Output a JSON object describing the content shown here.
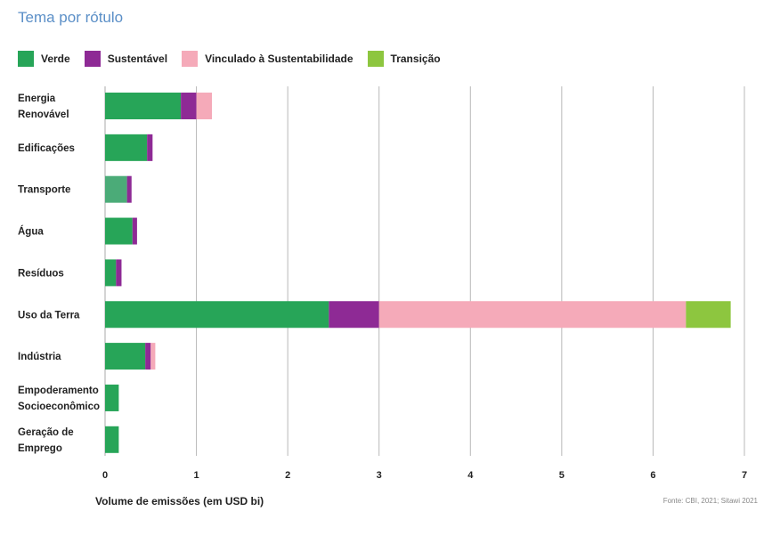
{
  "title": "Tema por rótulo",
  "source": "Fonte: CBI, 2021; Sitawi 2021",
  "colors": {
    "verde": "#27a558",
    "sustentavel": "#8e2a95",
    "vinculado": "#f5aab9",
    "transicao": "#8dc63f",
    "grid": "#b8b8b8"
  },
  "legend": [
    {
      "label": "Verde",
      "color": "#27a558"
    },
    {
      "label": "Sustentável",
      "color": "#8e2a95"
    },
    {
      "label": "Vinculado à Sustentabilidade",
      "color": "#f5aab9"
    },
    {
      "label": "Transição",
      "color": "#8dc63f"
    }
  ],
  "chart_data": {
    "type": "bar",
    "orientation": "horizontal",
    "stacked": true,
    "title": "Tema por rótulo",
    "xlabel": "Volume de emissões (em USD bi)",
    "ylabel": "",
    "xlim": [
      0,
      7
    ],
    "xticks": [
      "0",
      "1",
      "2",
      "3",
      "4",
      "5",
      "6",
      "7"
    ],
    "grid": true,
    "legend_position": "top",
    "categories": [
      [
        "Energia",
        "Renovável"
      ],
      [
        "Edificações"
      ],
      [
        "Transporte"
      ],
      [
        "Água"
      ],
      [
        "Resíduos"
      ],
      [
        "Uso da Terra"
      ],
      [
        "Indústria"
      ],
      [
        "Empoderamento",
        "Socioeconômico"
      ],
      [
        "Geração de",
        "Emprego"
      ]
    ],
    "series": [
      {
        "name": "Verde",
        "color": "#27a558",
        "values": [
          0.83,
          0.46,
          0.24,
          0.3,
          0.12,
          2.45,
          0.44,
          0.15,
          0.15
        ]
      },
      {
        "name": "Sustentável",
        "color": "#8e2a95",
        "values": [
          0.17,
          0.06,
          0.05,
          0.05,
          0.06,
          0.55,
          0.06,
          0,
          0
        ]
      },
      {
        "name": "Vinculado à Sustentabilidade",
        "color": "#f5aab9",
        "values": [
          0.17,
          0,
          0,
          0,
          0,
          3.36,
          0.05,
          0,
          0
        ]
      },
      {
        "name": "Transição",
        "color": "#8dc63f",
        "values": [
          0,
          0,
          0,
          0,
          0,
          0.49,
          0,
          0,
          0
        ]
      }
    ]
  }
}
